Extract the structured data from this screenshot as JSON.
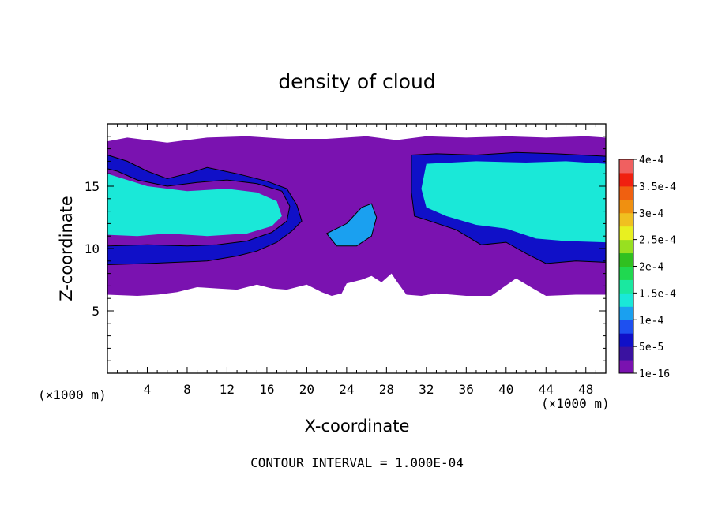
{
  "chart_data": {
    "type": "heatmap",
    "title": "density of cloud",
    "xlabel": "X-coordinate",
    "ylabel": "Z-coordinate",
    "x_unit_left": "(×1000 m)",
    "x_unit_right": "(×1000 m)",
    "xlim": [
      0,
      50
    ],
    "ylim": [
      0,
      20
    ],
    "x_ticks": [
      4,
      8,
      12,
      16,
      20,
      24,
      28,
      32,
      36,
      40,
      44,
      48
    ],
    "y_ticks": [
      5,
      10,
      15
    ],
    "footer": "CONTOUR INTERVAL = 1.000E-04",
    "colorbar": {
      "labels": [
        "1e-16",
        "5e-5",
        "1e-4",
        "1.5e-4",
        "2e-4",
        "2.5e-4",
        "3e-4",
        "3.5e-4",
        "4e-4"
      ],
      "colors": [
        "#7a12b0",
        "#3a12a0",
        "#1010c8",
        "#1e50f0",
        "#1aa0f0",
        "#1ae8d8",
        "#1ae8a0",
        "#20d850",
        "#30c020",
        "#98e020",
        "#e8f020",
        "#f0c020",
        "#f09010",
        "#f06010",
        "#f02010",
        "#f06060"
      ]
    },
    "bands": {
      "outer": [
        [
          0,
          18.6
        ],
        [
          2,
          18.9
        ],
        [
          6,
          18.5
        ],
        [
          10,
          18.9
        ],
        [
          14,
          19.0
        ],
        [
          18,
          18.8
        ],
        [
          22,
          18.8
        ],
        [
          26,
          19.0
        ],
        [
          29,
          18.7
        ],
        [
          32,
          19.0
        ],
        [
          36,
          18.9
        ],
        [
          40,
          19.0
        ],
        [
          44,
          18.9
        ],
        [
          48,
          19.0
        ],
        [
          50,
          18.9
        ],
        [
          50,
          6.3
        ],
        [
          47,
          6.3
        ],
        [
          44,
          6.2
        ],
        [
          42.7,
          6.8
        ],
        [
          41,
          7.6
        ],
        [
          38.5,
          6.2
        ],
        [
          36,
          6.2
        ],
        [
          33,
          6.4
        ],
        [
          31.5,
          6.2
        ],
        [
          30,
          6.3
        ],
        [
          29,
          7.4
        ],
        [
          28.5,
          8.0
        ],
        [
          27.5,
          7.3
        ],
        [
          26.5,
          7.8
        ],
        [
          25.5,
          7.5
        ],
        [
          24,
          7.2
        ],
        [
          23.5,
          6.4
        ],
        [
          22.5,
          6.2
        ],
        [
          21.5,
          6.5
        ],
        [
          20,
          7.1
        ],
        [
          18,
          6.7
        ],
        [
          16.5,
          6.8
        ],
        [
          15,
          7.1
        ],
        [
          13,
          6.7
        ],
        [
          11,
          6.8
        ],
        [
          9,
          6.9
        ],
        [
          7,
          6.5
        ],
        [
          5,
          6.3
        ],
        [
          3,
          6.2
        ],
        [
          0,
          6.3
        ]
      ],
      "inner_a": [
        [
          0,
          17.5
        ],
        [
          2,
          17.0
        ],
        [
          4,
          16.2
        ],
        [
          6,
          15.6
        ],
        [
          8,
          16.0
        ],
        [
          10,
          16.5
        ],
        [
          13,
          16.0
        ],
        [
          16,
          15.4
        ],
        [
          18,
          14.8
        ],
        [
          19,
          13.5
        ],
        [
          19.5,
          12.2
        ],
        [
          18.5,
          11.4
        ],
        [
          17,
          10.5
        ],
        [
          15,
          9.8
        ],
        [
          13,
          9.4
        ],
        [
          10,
          9.0
        ],
        [
          7,
          8.9
        ],
        [
          4,
          8.8
        ],
        [
          0,
          8.7
        ],
        [
          0,
          10.2
        ],
        [
          4,
          10.3
        ],
        [
          8,
          10.2
        ],
        [
          11,
          10.3
        ],
        [
          14,
          10.6
        ],
        [
          16.5,
          11.3
        ],
        [
          18,
          12.2
        ],
        [
          18.3,
          13.4
        ],
        [
          17.5,
          14.6
        ],
        [
          15,
          15.2
        ],
        [
          12,
          15.5
        ],
        [
          9,
          15.3
        ],
        [
          6,
          15.0
        ],
        [
          3,
          15.5
        ],
        [
          1,
          16.2
        ],
        [
          0,
          16.4
        ]
      ],
      "inner_b": [
        [
          30.5,
          17.5
        ],
        [
          33,
          17.6
        ],
        [
          37,
          17.5
        ],
        [
          41,
          17.7
        ],
        [
          45,
          17.6
        ],
        [
          50,
          17.4
        ],
        [
          50,
          8.9
        ],
        [
          47,
          9.0
        ],
        [
          44,
          8.8
        ],
        [
          42,
          9.6
        ],
        [
          40,
          10.5
        ],
        [
          37.5,
          10.3
        ],
        [
          35,
          11.5
        ],
        [
          32,
          12.3
        ],
        [
          30.8,
          12.6
        ],
        [
          30.5,
          14.5
        ]
      ],
      "inner_c": [
        [
          22,
          11.2
        ],
        [
          24,
          12.0
        ],
        [
          25.5,
          13.3
        ],
        [
          26.5,
          13.6
        ],
        [
          27,
          12.5
        ],
        [
          26.5,
          11.0
        ],
        [
          25,
          10.2
        ],
        [
          23,
          10.2
        ]
      ],
      "deep_a": [
        [
          0,
          16.0
        ],
        [
          4,
          15.0
        ],
        [
          8,
          14.6
        ],
        [
          12,
          14.8
        ],
        [
          15,
          14.5
        ],
        [
          17,
          13.8
        ],
        [
          17.5,
          12.6
        ],
        [
          16.5,
          11.8
        ],
        [
          14,
          11.2
        ],
        [
          10,
          11.0
        ],
        [
          6,
          11.2
        ],
        [
          3,
          11.0
        ],
        [
          0,
          11.1
        ]
      ],
      "deep_b": [
        [
          32,
          16.8
        ],
        [
          37,
          17.0
        ],
        [
          42,
          16.9
        ],
        [
          46,
          17.0
        ],
        [
          50,
          16.8
        ],
        [
          50,
          10.5
        ],
        [
          46,
          10.6
        ],
        [
          43,
          10.8
        ],
        [
          40,
          11.6
        ],
        [
          37,
          11.9
        ],
        [
          34,
          12.6
        ],
        [
          32,
          13.3
        ],
        [
          31.5,
          14.8
        ]
      ]
    }
  }
}
